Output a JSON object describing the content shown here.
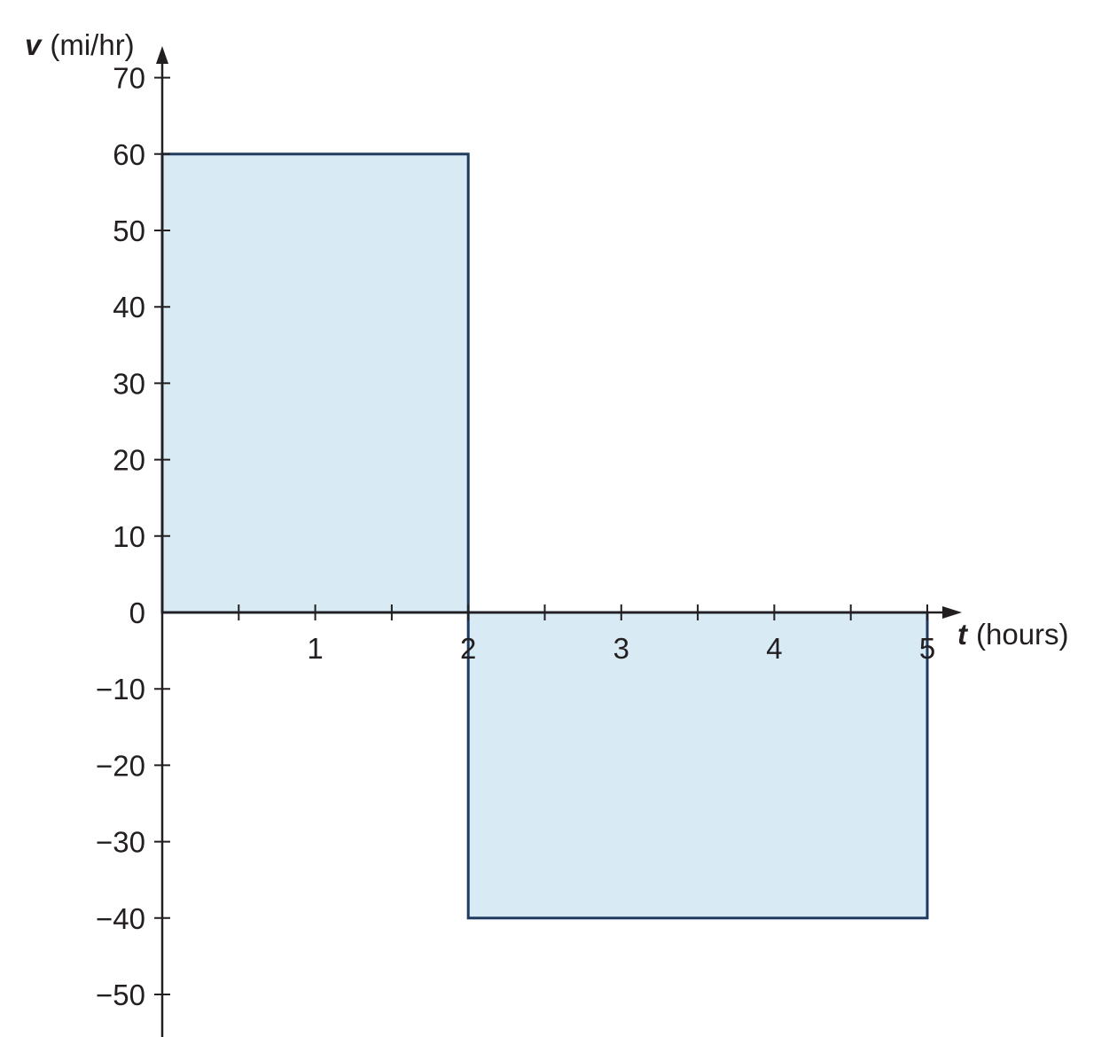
{
  "chart_data": {
    "type": "area",
    "title": "",
    "x_axis": {
      "variable": "t",
      "unit": "(hours)",
      "range": [
        0,
        5
      ],
      "ticks": [
        0.5,
        1,
        1.5,
        2,
        2.5,
        3,
        3.5,
        4,
        4.5,
        5
      ],
      "tick_labels": [
        {
          "value": 1,
          "label": "1"
        },
        {
          "value": 2,
          "label": "2"
        },
        {
          "value": 3,
          "label": "3"
        },
        {
          "value": 4,
          "label": "4"
        },
        {
          "value": 5,
          "label": "5"
        }
      ]
    },
    "y_axis": {
      "variable": "v",
      "unit": "(mi/hr)",
      "range": [
        -50,
        70
      ],
      "tick_labels": [
        {
          "value": 70,
          "label": "70"
        },
        {
          "value": 60,
          "label": "60"
        },
        {
          "value": 50,
          "label": "50"
        },
        {
          "value": 40,
          "label": "40"
        },
        {
          "value": 30,
          "label": "30"
        },
        {
          "value": 20,
          "label": "20"
        },
        {
          "value": 10,
          "label": "10"
        },
        {
          "value": 0,
          "label": "0"
        },
        {
          "value": -10,
          "label": "−10"
        },
        {
          "value": -20,
          "label": "−20"
        },
        {
          "value": -30,
          "label": "−30"
        },
        {
          "value": -40,
          "label": "−40"
        },
        {
          "value": -50,
          "label": "−50"
        }
      ]
    },
    "regions": [
      {
        "x_start": 0,
        "x_end": 2,
        "value": 60
      },
      {
        "x_start": 2,
        "x_end": 5,
        "value": -40
      }
    ],
    "grid": false,
    "legend": false
  },
  "colors": {
    "fill": "#d8eaf4",
    "outline": "#1f3a5f",
    "axis": "#231f20"
  }
}
